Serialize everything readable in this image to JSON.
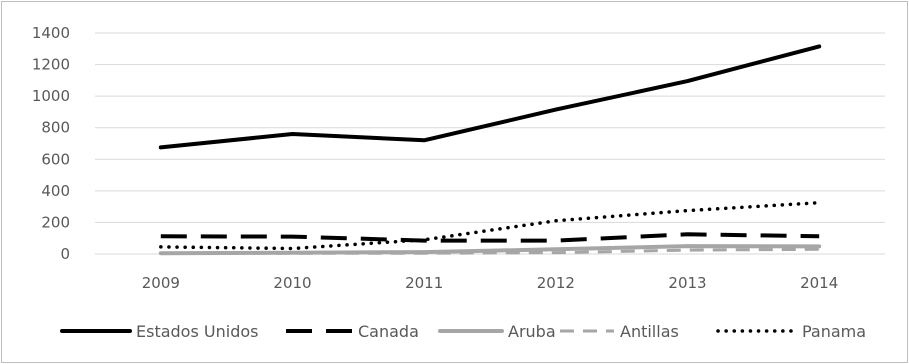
{
  "chart_data": {
    "type": "line",
    "categories": [
      "2009",
      "2010",
      "2011",
      "2012",
      "2013",
      "2014"
    ],
    "ylim": [
      0,
      1400
    ],
    "yticks": [
      0,
      200,
      400,
      600,
      800,
      1000,
      1200,
      1400
    ],
    "grid": true,
    "legend_position": "bottom",
    "series": [
      {
        "name": "Estados Unidos",
        "values": [
          675,
          760,
          720,
          915,
          1095,
          1315
        ],
        "color": "#000000",
        "style": "solid"
      },
      {
        "name": "Canada",
        "values": [
          112,
          110,
          85,
          85,
          125,
          112
        ],
        "color": "#000000",
        "style": "long-dash"
      },
      {
        "name": "Aruba",
        "values": [
          5,
          8,
          12,
          30,
          50,
          48
        ],
        "color": "#a6a6a6",
        "style": "solid"
      },
      {
        "name": "Antillas",
        "values": [
          5,
          5,
          5,
          8,
          25,
          30
        ],
        "color": "#a6a6a6",
        "style": "dash"
      },
      {
        "name": "Panama",
        "values": [
          45,
          35,
          90,
          210,
          275,
          325
        ],
        "color": "#000000",
        "style": "dot"
      }
    ]
  }
}
